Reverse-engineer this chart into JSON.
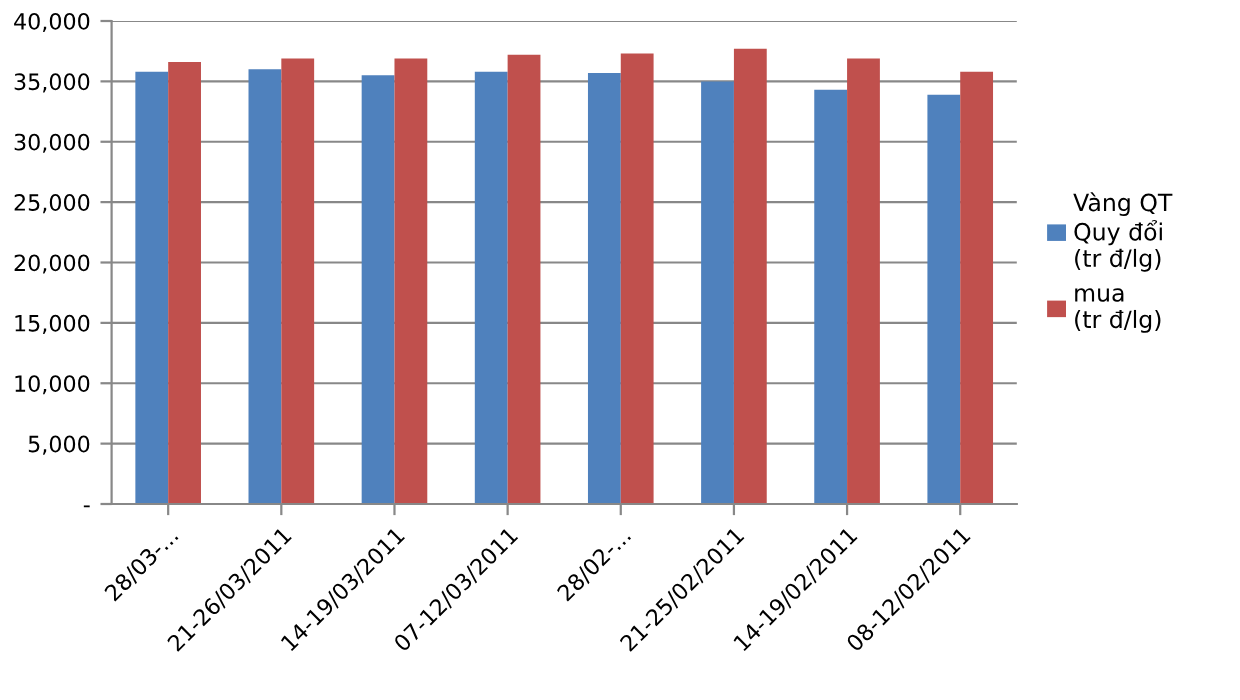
{
  "chart_data": {
    "type": "bar",
    "categories": [
      "28/03-...",
      "21-26/03/2011",
      "14-19/03/2011",
      "07-12/03/2011",
      "28/02-...",
      "21-25/02/2011",
      "14-19/02/2011",
      "08-12/02/2011"
    ],
    "series": [
      {
        "name": "Vàng QT\nQuy đổi\n(tr đ/lg)",
        "color": "#4f81bd",
        "values": [
          35800,
          36000,
          35500,
          35800,
          35700,
          35000,
          34300,
          33900
        ]
      },
      {
        "name": "mua\n(tr đ/lg)",
        "color": "#c0504d",
        "values": [
          36600,
          36900,
          36900,
          37200,
          37300,
          37700,
          36900,
          35800
        ]
      }
    ],
    "ylim": [
      0,
      40000
    ],
    "yticks": [
      {
        "value": 0,
        "label": "-"
      },
      {
        "value": 5000,
        "label": "5,000"
      },
      {
        "value": 10000,
        "label": "10,000"
      },
      {
        "value": 15000,
        "label": "15,000"
      },
      {
        "value": 20000,
        "label": "20,000"
      },
      {
        "value": 25000,
        "label": "25,000"
      },
      {
        "value": 30000,
        "label": "30,000"
      },
      {
        "value": 35000,
        "label": "35,000"
      },
      {
        "value": 40000,
        "label": "40,000"
      }
    ],
    "grid": "y",
    "legend": "right"
  }
}
